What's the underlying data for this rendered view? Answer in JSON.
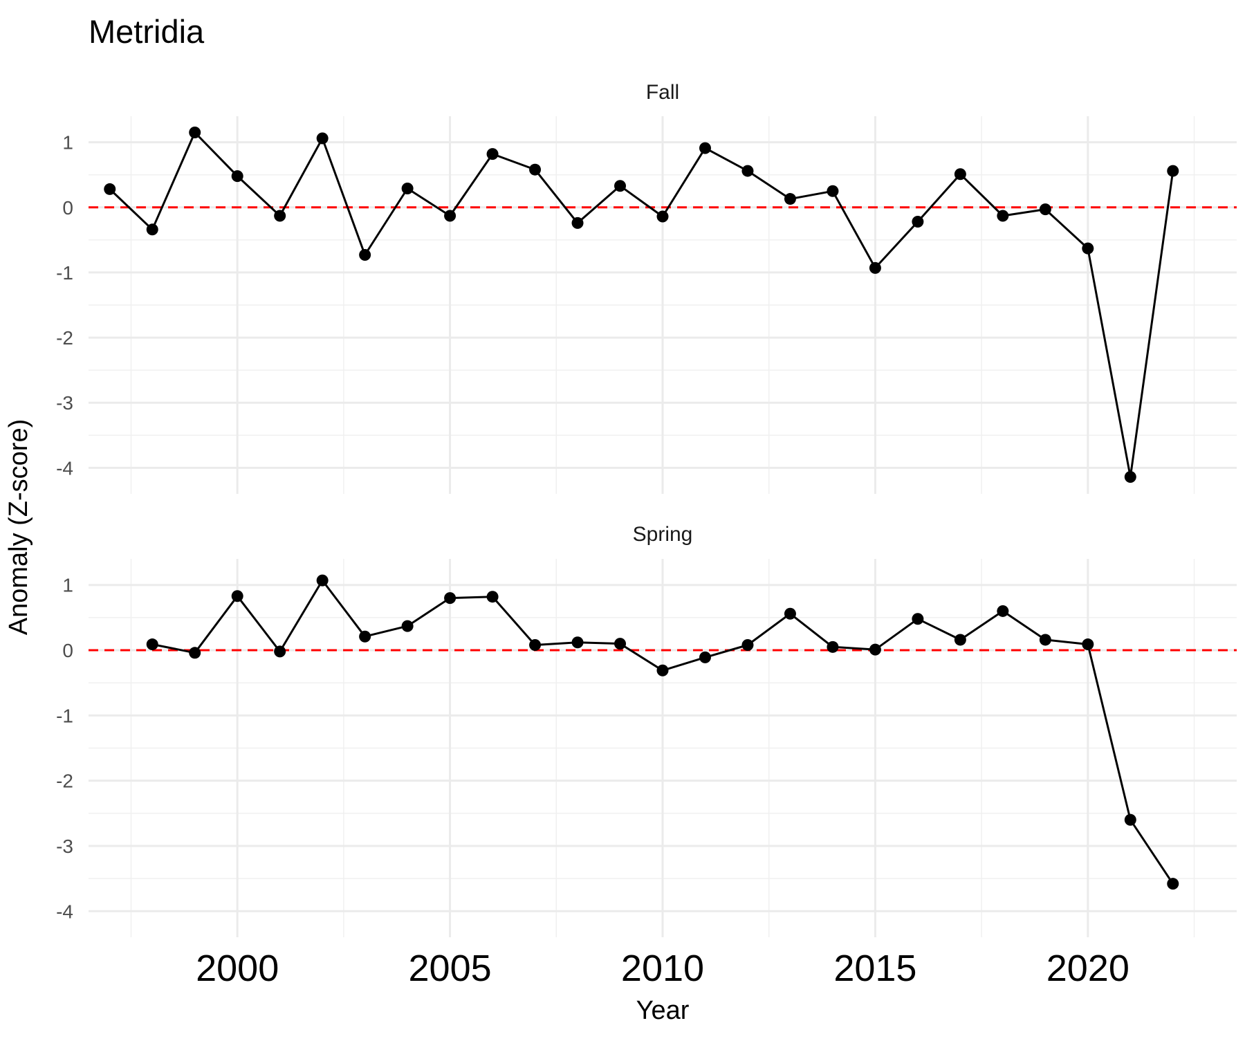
{
  "chart_data": {
    "type": "line",
    "title": "Metridia",
    "xlabel": "Year",
    "ylabel": "Anomaly (Z-score)",
    "xlim": [
      1996.5,
      2023.5
    ],
    "ylim": [
      -4.4,
      1.4
    ],
    "x_ticks": [
      "2000",
      "2005",
      "2010",
      "2015",
      "2020"
    ],
    "y_ticks": [
      "-4",
      "-3",
      "-2",
      "-1",
      "0",
      "1"
    ],
    "reference_line": {
      "y": 0,
      "color": "#ff0000",
      "style": "dashed"
    },
    "line_color": "#000000",
    "grid": true,
    "panels": [
      {
        "label": "Fall",
        "x": [
          1997,
          1998,
          1999,
          2000,
          2001,
          2002,
          2003,
          2004,
          2005,
          2006,
          2007,
          2008,
          2009,
          2010,
          2011,
          2012,
          2013,
          2014,
          2015,
          2016,
          2017,
          2018,
          2019,
          2020,
          2021,
          2022
        ],
        "values": [
          0.28,
          -0.34,
          1.15,
          0.48,
          -0.13,
          1.06,
          -0.73,
          0.29,
          -0.13,
          0.82,
          0.58,
          -0.24,
          0.33,
          -0.14,
          0.91,
          0.56,
          0.13,
          0.25,
          -0.93,
          -0.22,
          0.51,
          -0.13,
          -0.03,
          -0.63,
          -4.14,
          0.56
        ]
      },
      {
        "label": "Spring",
        "x": [
          1998,
          1999,
          2000,
          2001,
          2002,
          2003,
          2004,
          2005,
          2006,
          2007,
          2008,
          2009,
          2010,
          2011,
          2012,
          2013,
          2014,
          2015,
          2016,
          2017,
          2018,
          2019,
          2020,
          2021,
          2022
        ],
        "values": [
          0.09,
          -0.04,
          0.83,
          -0.02,
          1.07,
          0.21,
          0.37,
          0.8,
          0.82,
          0.08,
          0.12,
          0.1,
          -0.31,
          -0.11,
          0.08,
          0.56,
          0.05,
          0.01,
          0.48,
          0.16,
          0.6,
          0.16,
          0.09,
          -2.6,
          -3.58
        ]
      }
    ]
  }
}
